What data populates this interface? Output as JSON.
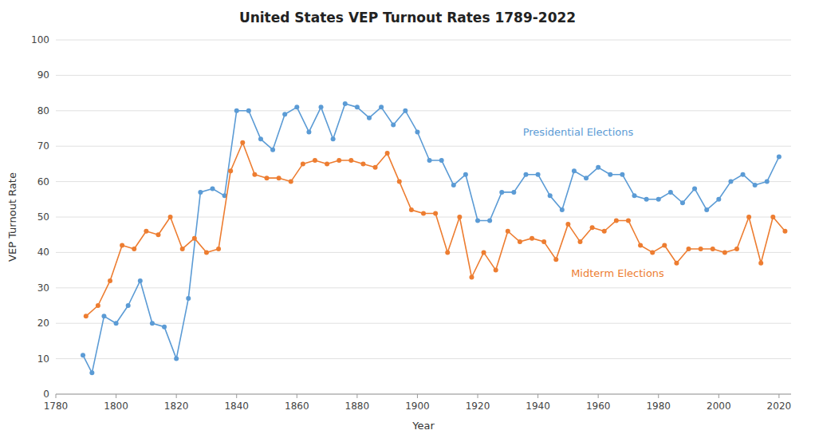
{
  "chart_data": {
    "type": "line",
    "title": "United States VEP Turnout Rates 1789-2022",
    "xlabel": "Year",
    "ylabel": "VEP Turnout Rate",
    "xlim": [
      1780,
      2024
    ],
    "ylim": [
      0,
      100
    ],
    "xticks": [
      1780,
      1800,
      1820,
      1840,
      1860,
      1880,
      1900,
      1920,
      1940,
      1960,
      1980,
      2000,
      2020
    ],
    "yticks": [
      0,
      10,
      20,
      30,
      40,
      50,
      60,
      70,
      80,
      90,
      100
    ],
    "grid": true,
    "marker": "circle",
    "series": [
      {
        "color": "#5B9BD5",
        "x": [
          1789,
          1792,
          1796,
          1800,
          1804,
          1808,
          1812,
          1816,
          1820,
          1824,
          1828,
          1832,
          1836,
          1840,
          1844,
          1848,
          1852,
          1856,
          1860,
          1864,
          1868,
          1872,
          1876,
          1880,
          1884,
          1888,
          1892,
          1896,
          1900,
          1904,
          1908,
          1912,
          1916,
          1920,
          1924,
          1928,
          1932,
          1936,
          1940,
          1944,
          1948,
          1952,
          1956,
          1960,
          1964,
          1968,
          1972,
          1976,
          1980,
          1984,
          1988,
          1992,
          1996,
          2000,
          2004,
          2008,
          2012,
          2016,
          2020
        ],
        "values": [
          11,
          6,
          22,
          20,
          25,
          32,
          20,
          19,
          10,
          27,
          57,
          58,
          56,
          80,
          80,
          72,
          69,
          79,
          81,
          74,
          81,
          72,
          82,
          81,
          78,
          81,
          76,
          80,
          74,
          66,
          66,
          59,
          62,
          49,
          49,
          57,
          57,
          62,
          62,
          56,
          52,
          63,
          61,
          64,
          62,
          62,
          56,
          55,
          55,
          57,
          54,
          58,
          52,
          55,
          60,
          62,
          59,
          60,
          67
        ]
      },
      {
        "color": "#ED7D31",
        "x": [
          1790,
          1794,
          1798,
          1802,
          1806,
          1810,
          1814,
          1818,
          1822,
          1826,
          1830,
          1834,
          1838,
          1842,
          1846,
          1850,
          1854,
          1858,
          1862,
          1866,
          1870,
          1874,
          1878,
          1882,
          1886,
          1890,
          1894,
          1898,
          1902,
          1906,
          1910,
          1914,
          1918,
          1922,
          1926,
          1930,
          1934,
          1938,
          1942,
          1946,
          1950,
          1954,
          1958,
          1962,
          1966,
          1970,
          1974,
          1978,
          1982,
          1986,
          1990,
          1994,
          1998,
          2002,
          2006,
          2010,
          2014,
          2018,
          2022
        ],
        "values": [
          22,
          25,
          32,
          42,
          41,
          46,
          45,
          50,
          41,
          44,
          40,
          41,
          63,
          71,
          62,
          61,
          61,
          60,
          65,
          66,
          65,
          66,
          66,
          65,
          64,
          68,
          60,
          52,
          51,
          51,
          40,
          50,
          33,
          40,
          35,
          46,
          43,
          44,
          43,
          38,
          48,
          43,
          47,
          46,
          49,
          49,
          42,
          40,
          42,
          37,
          41,
          41,
          41,
          40,
          41,
          50,
          37,
          50,
          46
        ]
      }
    ],
    "annotations": [
      {
        "text": "Presidential Elections",
        "x": 1935,
        "y": 73,
        "color": "#5B9BD5"
      },
      {
        "text": "Midterm Elections",
        "x": 1951,
        "y": 33,
        "color": "#ED7D31"
      }
    ]
  }
}
